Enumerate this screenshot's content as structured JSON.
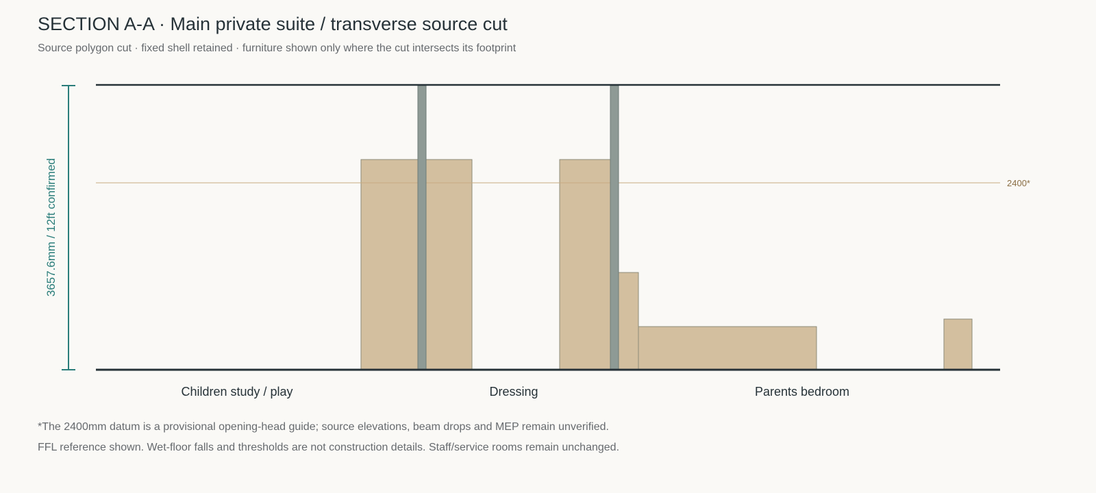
{
  "header": {
    "title": "SECTION A-A · Main private suite / transverse source cut",
    "subtitle": "Source polygon cut · fixed shell retained · furniture shown only where the cut intersects its footprint"
  },
  "section": {
    "height_dimension_label": "3657.6mm / 12ft confirmed",
    "datum_label": "2400*",
    "rooms": [
      {
        "id": "children",
        "label": "Children study / play"
      },
      {
        "id": "dressing",
        "label": "Dressing"
      },
      {
        "id": "parents",
        "label": "Parents bedroom"
      }
    ],
    "colors": {
      "shell": "#263238",
      "wall": "#8e9a95",
      "furniture": "#d3bf9f",
      "furniture_stroke": "#8c8b78",
      "datum": "#c8aa80",
      "dimension": "#2a7d7a"
    }
  },
  "notes": [
    "*The 2400mm datum is a provisional opening-head guide; source elevations, beam drops and MEP remain unverified.",
    "FFL reference shown. Wet-floor falls and thresholds are not construction details. Staff/service rooms remain unchanged."
  ]
}
